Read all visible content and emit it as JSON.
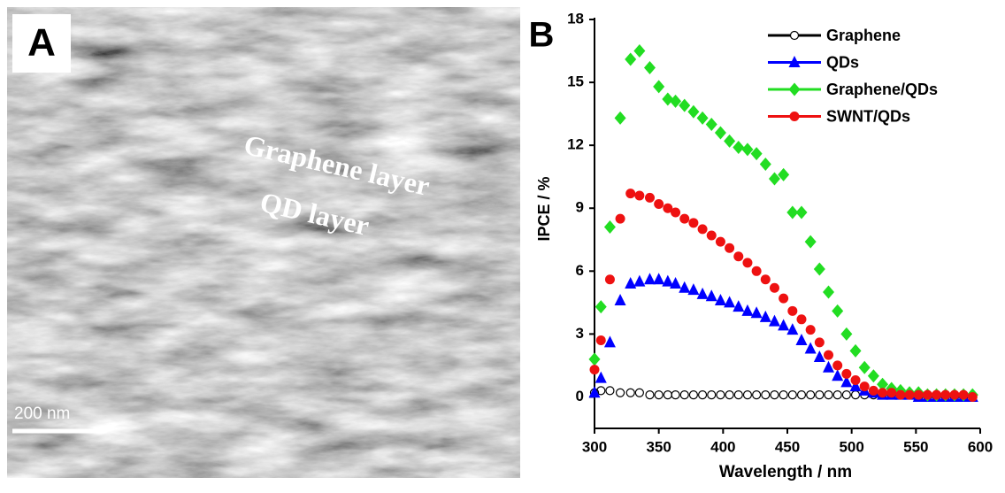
{
  "panel_a": {
    "label": "A",
    "annotations": [
      "Graphene layer",
      "QD layer"
    ],
    "scale_bar": "200 nm"
  },
  "chart_data": {
    "type": "scatter",
    "panel_label": "B",
    "x_label": "Wavelength / nm",
    "y_label": "IPCE / %",
    "xlim": [
      300,
      600
    ],
    "ylim": [
      -1.5,
      18
    ],
    "xticks": [
      300,
      350,
      400,
      450,
      500,
      550,
      600
    ],
    "yticks": [
      0,
      3,
      6,
      9,
      12,
      15,
      18
    ],
    "legend": "upper right",
    "x": [
      300,
      305,
      312,
      320,
      328,
      335,
      343,
      350,
      357,
      363,
      370,
      377,
      384,
      391,
      398,
      405,
      412,
      419,
      426,
      433,
      440,
      447,
      454,
      461,
      468,
      475,
      482,
      489,
      496,
      503,
      510,
      517,
      524,
      531,
      538,
      545,
      552,
      559,
      566,
      573,
      580,
      587,
      594
    ],
    "series": [
      {
        "name": "Graphene",
        "color": "#000000",
        "marker": "circle-open",
        "values": [
          0.2,
          0.3,
          0.3,
          0.2,
          0.2,
          0.2,
          0.1,
          0.1,
          0.1,
          0.1,
          0.1,
          0.1,
          0.1,
          0.1,
          0.1,
          0.1,
          0.1,
          0.1,
          0.1,
          0.1,
          0.1,
          0.1,
          0.1,
          0.1,
          0.1,
          0.1,
          0.1,
          0.1,
          0.1,
          0.1,
          0.1,
          0.1,
          0.1,
          0.1,
          0.1,
          0.1,
          0.0,
          0.0,
          0.0,
          0.0,
          0.0,
          0.0,
          0.0
        ]
      },
      {
        "name": "QDs",
        "color": "#0000ff",
        "marker": "triangle",
        "values": [
          0.2,
          0.9,
          2.6,
          4.6,
          5.4,
          5.5,
          5.6,
          5.6,
          5.5,
          5.4,
          5.2,
          5.1,
          4.9,
          4.8,
          4.6,
          4.5,
          4.3,
          4.1,
          4.0,
          3.8,
          3.6,
          3.4,
          3.2,
          2.7,
          2.3,
          1.9,
          1.4,
          1.0,
          0.7,
          0.5,
          0.3,
          0.2,
          0.1,
          0.1,
          0.1,
          0.1,
          0.0,
          0.0,
          0.0,
          0.0,
          0.0,
          0.0,
          0.0
        ]
      },
      {
        "name": "Graphene/QDs",
        "color": "#22dd22",
        "marker": "diamond",
        "values": [
          1.8,
          4.3,
          8.1,
          13.3,
          16.1,
          16.5,
          15.7,
          14.8,
          14.2,
          14.1,
          13.9,
          13.6,
          13.3,
          13.0,
          12.6,
          12.2,
          11.9,
          11.8,
          11.6,
          11.1,
          10.4,
          10.6,
          8.8,
          8.8,
          7.4,
          6.1,
          5.0,
          4.1,
          3.0,
          2.2,
          1.4,
          1.0,
          0.6,
          0.4,
          0.3,
          0.2,
          0.2,
          0.1,
          0.1,
          0.1,
          0.1,
          0.1,
          0.1
        ]
      },
      {
        "name": "SWNT/QDs",
        "color": "#ee1111",
        "marker": "circle",
        "values": [
          1.3,
          2.7,
          5.6,
          8.5,
          9.7,
          9.6,
          9.5,
          9.2,
          9.0,
          8.8,
          8.5,
          8.3,
          8.0,
          7.7,
          7.4,
          7.1,
          6.7,
          6.4,
          6.0,
          5.6,
          5.2,
          4.7,
          4.1,
          3.7,
          3.2,
          2.6,
          2.0,
          1.5,
          1.1,
          0.8,
          0.5,
          0.3,
          0.2,
          0.2,
          0.1,
          0.1,
          0.1,
          0.1,
          0.1,
          0.1,
          0.1,
          0.1,
          0.0
        ]
      }
    ]
  }
}
